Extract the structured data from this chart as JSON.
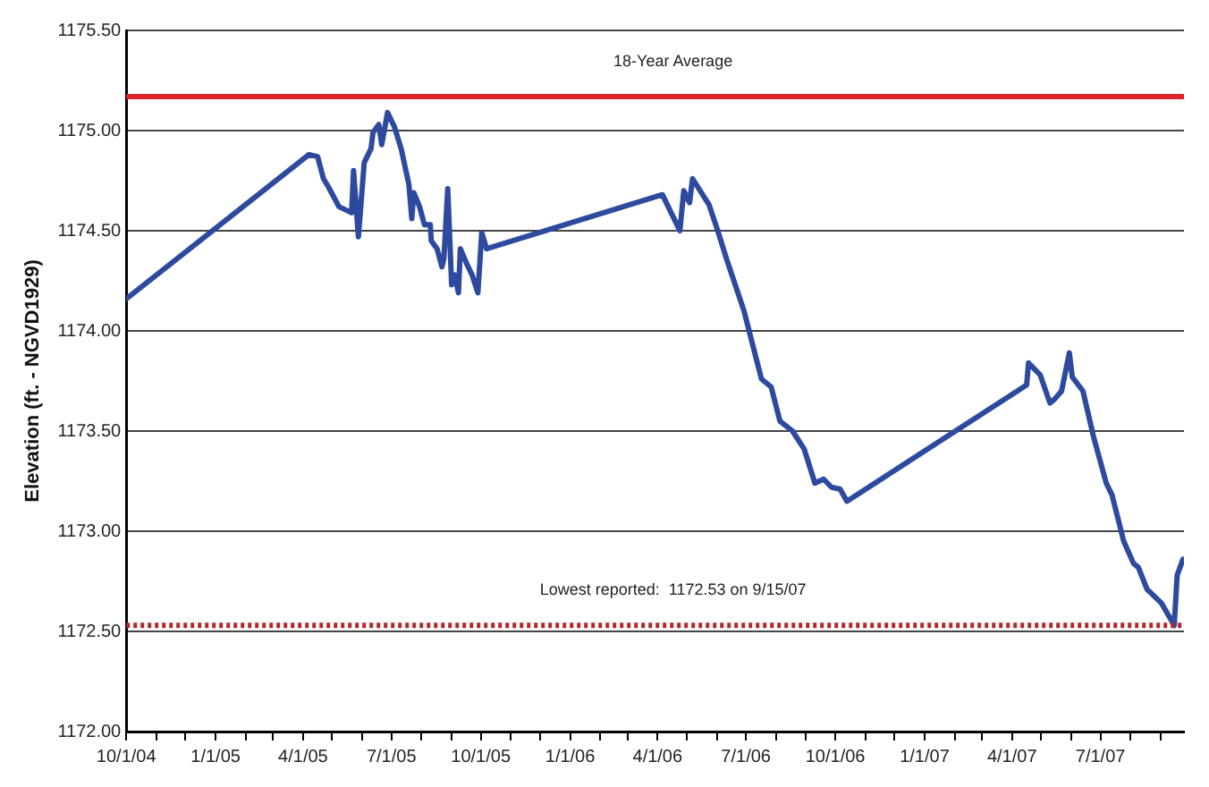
{
  "chart_data": {
    "type": "line",
    "ylabel": "Elevation (ft. - NGVD1929)",
    "x": [
      "2004-10-01",
      "2005-04-07",
      "2005-04-16",
      "2005-04-22",
      "2005-04-27",
      "2005-05-08",
      "2005-05-21",
      "2005-05-23",
      "2005-05-28",
      "2005-06-03",
      "2005-06-10",
      "2005-06-12",
      "2005-06-18",
      "2005-06-21",
      "2005-06-27",
      "2005-07-04",
      "2005-07-11",
      "2005-07-19",
      "2005-07-22",
      "2005-07-24",
      "2005-07-30",
      "2005-08-04",
      "2005-08-10",
      "2005-08-11",
      "2005-08-17",
      "2005-08-22",
      "2005-08-24",
      "2005-08-28",
      "2005-09-01",
      "2005-09-04",
      "2005-09-08",
      "2005-09-10",
      "2005-09-17",
      "2005-09-22",
      "2005-09-28",
      "2005-10-02",
      "2005-10-07",
      "2006-04-06",
      "2006-04-15",
      "2006-04-24",
      "2006-04-28",
      "2006-05-04",
      "2006-05-07",
      "2006-05-24",
      "2006-06-02",
      "2006-06-11",
      "2006-06-20",
      "2006-06-29",
      "2006-07-08",
      "2006-07-17",
      "2006-07-27",
      "2006-08-05",
      "2006-08-18",
      "2006-08-30",
      "2006-09-10",
      "2006-09-19",
      "2006-09-27",
      "2006-10-06",
      "2006-10-13",
      "2007-04-16",
      "2007-04-18",
      "2007-04-30",
      "2007-05-10",
      "2007-05-15",
      "2007-05-22",
      "2007-05-30",
      "2007-06-02",
      "2007-06-13",
      "2007-06-24",
      "2007-07-07",
      "2007-07-13",
      "2007-07-25",
      "2007-08-04",
      "2007-08-09",
      "2007-08-18",
      "2007-09-02",
      "2007-09-15",
      "2007-09-18",
      "2007-09-24"
    ],
    "series": [
      {
        "color": "#2e4a9e",
        "values": [
          1174.16,
          1174.88,
          1174.87,
          1174.76,
          1174.72,
          1174.62,
          1174.59,
          1174.8,
          1174.47,
          1174.84,
          1174.91,
          1174.99,
          1175.03,
          1174.93,
          1175.09,
          1175.02,
          1174.91,
          1174.73,
          1174.56,
          1174.69,
          1174.62,
          1174.53,
          1174.53,
          1174.45,
          1174.41,
          1174.32,
          1174.36,
          1174.71,
          1174.23,
          1174.28,
          1174.19,
          1174.41,
          1174.33,
          1174.28,
          1174.19,
          1174.49,
          1174.41,
          1174.68,
          1174.59,
          1174.5,
          1174.7,
          1174.64,
          1174.76,
          1174.63,
          1174.5,
          1174.36,
          1174.23,
          1174.1,
          1173.93,
          1173.76,
          1173.72,
          1173.55,
          1173.5,
          1173.41,
          1173.24,
          1173.26,
          1173.22,
          1173.21,
          1173.15,
          1173.73,
          1173.84,
          1173.78,
          1173.64,
          1173.66,
          1173.7,
          1173.89,
          1173.77,
          1173.7,
          1173.47,
          1173.24,
          1173.18,
          1172.95,
          1172.84,
          1172.82,
          1172.71,
          1172.64,
          1172.53,
          1172.78,
          1172.86
        ]
      }
    ],
    "xlim": [
      "2004-10-01",
      "2007-09-25"
    ],
    "xticks": [
      {
        "value": "2004-10-01",
        "label": "10/1/04"
      },
      {
        "value": "2004-11-01",
        "label": null
      },
      {
        "value": "2004-12-01",
        "label": null
      },
      {
        "value": "2005-01-01",
        "label": "1/1/05"
      },
      {
        "value": "2005-02-01",
        "label": null
      },
      {
        "value": "2005-03-01",
        "label": null
      },
      {
        "value": "2005-04-01",
        "label": "4/1/05"
      },
      {
        "value": "2005-05-01",
        "label": null
      },
      {
        "value": "2005-06-01",
        "label": null
      },
      {
        "value": "2005-07-01",
        "label": "7/1/05"
      },
      {
        "value": "2005-08-01",
        "label": null
      },
      {
        "value": "2005-09-01",
        "label": null
      },
      {
        "value": "2005-10-01",
        "label": "10/1/05"
      },
      {
        "value": "2005-11-01",
        "label": null
      },
      {
        "value": "2005-12-01",
        "label": null
      },
      {
        "value": "2006-01-01",
        "label": "1/1/06"
      },
      {
        "value": "2006-02-01",
        "label": null
      },
      {
        "value": "2006-03-01",
        "label": null
      },
      {
        "value": "2006-04-01",
        "label": "4/1/06"
      },
      {
        "value": "2006-05-01",
        "label": null
      },
      {
        "value": "2006-06-01",
        "label": null
      },
      {
        "value": "2006-07-01",
        "label": "7/1/06"
      },
      {
        "value": "2006-08-01",
        "label": null
      },
      {
        "value": "2006-09-01",
        "label": null
      },
      {
        "value": "2006-10-01",
        "label": "10/1/06"
      },
      {
        "value": "2006-11-01",
        "label": null
      },
      {
        "value": "2006-12-01",
        "label": null
      },
      {
        "value": "2007-01-01",
        "label": "1/1/07"
      },
      {
        "value": "2007-02-01",
        "label": null
      },
      {
        "value": "2007-03-01",
        "label": null
      },
      {
        "value": "2007-04-01",
        "label": "4/1/07"
      },
      {
        "value": "2007-05-01",
        "label": null
      },
      {
        "value": "2007-06-01",
        "label": null
      },
      {
        "value": "2007-07-01",
        "label": "7/1/07"
      },
      {
        "value": "2007-08-01",
        "label": null
      },
      {
        "value": "2007-09-01",
        "label": null
      }
    ],
    "ylim": [
      1172,
      1175.5
    ],
    "yticks": [
      {
        "value": 1172,
        "label": "1172.00"
      },
      {
        "value": 1172.5,
        "label": "1172.50"
      },
      {
        "value": 1173,
        "label": "1173.00"
      },
      {
        "value": 1173.5,
        "label": "1173.50"
      },
      {
        "value": 1174,
        "label": "1174.00"
      },
      {
        "value": 1174.5,
        "label": "1174.50"
      },
      {
        "value": 1175,
        "label": "1175.00"
      },
      {
        "value": 1175.5,
        "label": "1175.50"
      }
    ],
    "grid": "y",
    "legend": false,
    "marker": "none",
    "line_style": "solid",
    "ref_lines": [
      {
        "axis": "y",
        "value": 1175.17,
        "label": "18-Year Average",
        "color": "#e0202a",
        "line_style": "solid"
      },
      {
        "axis": "y",
        "value": 1172.53,
        "label": "Lowest reported:  1172.53 on 9/15/07",
        "color": "#b0282e",
        "line_style": "dotted"
      }
    ]
  }
}
